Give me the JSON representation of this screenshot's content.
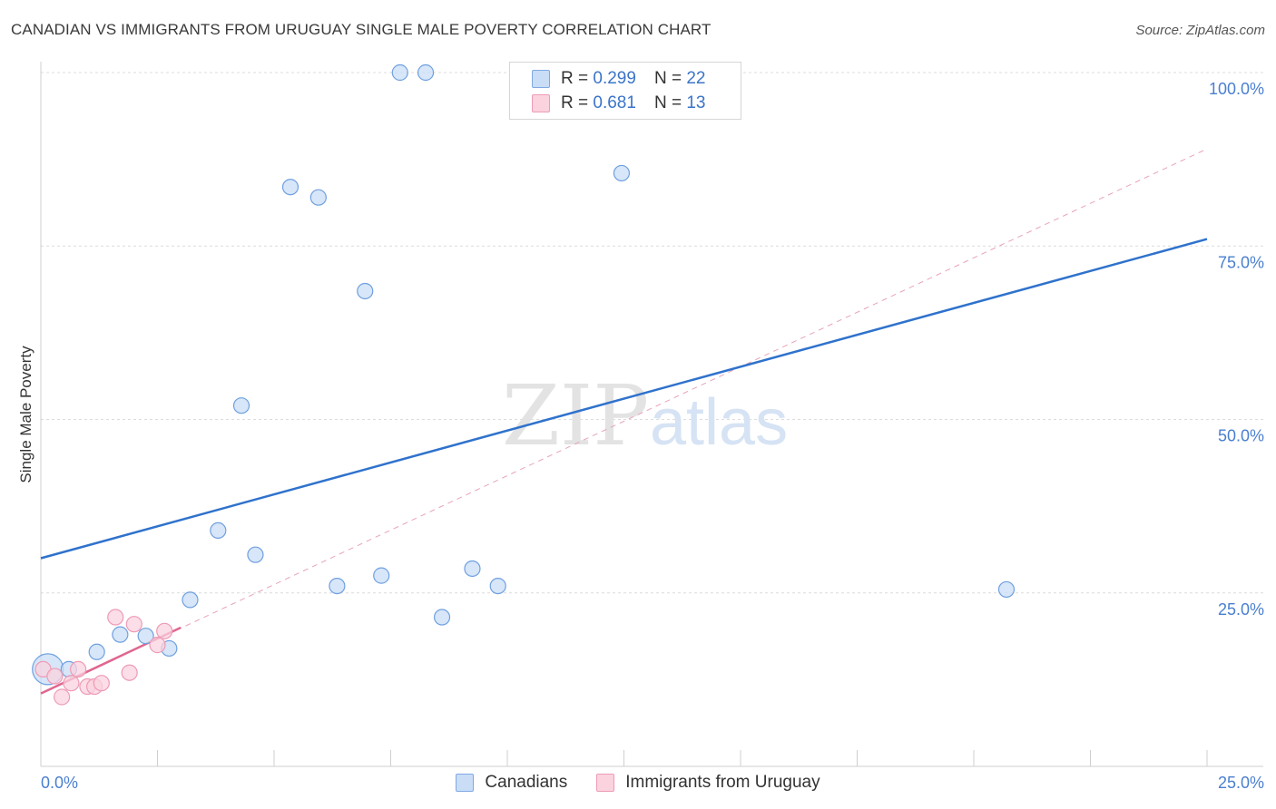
{
  "header": {
    "title": "CANADIAN VS IMMIGRANTS FROM URUGUAY SINGLE MALE POVERTY CORRELATION CHART",
    "source": "Source: ZipAtlas.com"
  },
  "watermark": {
    "zip": "ZIP",
    "atlas": "atlas"
  },
  "stats_legend": [
    {
      "r_label": "R =",
      "r_value": "0.299",
      "n_label": "N =",
      "n_value": "22",
      "color": "#a9c8f0"
    },
    {
      "r_label": "R =",
      "r_value": "0.681",
      "n_label": "N =",
      "n_value": "13",
      "color": "#f7b9cc"
    }
  ],
  "chart_data": {
    "type": "scatter",
    "title": "CANADIAN VS IMMIGRANTS FROM URUGUAY SINGLE MALE POVERTY CORRELATION CHART",
    "xlabel": "",
    "ylabel": "Single Male Poverty",
    "xlim": [
      0,
      25
    ],
    "ylim": [
      0,
      100
    ],
    "x_tick_labels": [
      "0.0%",
      "25.0%"
    ],
    "y_tick_labels": [
      "25.0%",
      "50.0%",
      "75.0%",
      "100.0%"
    ],
    "y_ticks": [
      25,
      50,
      75,
      100
    ],
    "grid": true,
    "legend_placement": "bottom",
    "series": [
      {
        "name": "Canadians",
        "color": "#6fa0e0",
        "fill": "#c9ddf6",
        "trend": {
          "x": [
            0,
            25
          ],
          "y": [
            30.0,
            76.0
          ],
          "color": "#2f72cc"
        },
        "points": [
          {
            "x": 0.15,
            "y": 14.0,
            "big": true
          },
          {
            "x": 0.6,
            "y": 14.0
          },
          {
            "x": 1.2,
            "y": 16.5
          },
          {
            "x": 1.7,
            "y": 19.0
          },
          {
            "x": 2.25,
            "y": 18.8
          },
          {
            "x": 2.75,
            "y": 17.0
          },
          {
            "x": 3.2,
            "y": 24.0
          },
          {
            "x": 3.8,
            "y": 34.0
          },
          {
            "x": 4.3,
            "y": 52.0
          },
          {
            "x": 4.6,
            "y": 30.5
          },
          {
            "x": 5.35,
            "y": 83.5
          },
          {
            "x": 5.95,
            "y": 82.0
          },
          {
            "x": 6.35,
            "y": 26.0
          },
          {
            "x": 6.95,
            "y": 68.5
          },
          {
            "x": 7.3,
            "y": 27.5
          },
          {
            "x": 7.7,
            "y": 100.0
          },
          {
            "x": 8.25,
            "y": 100.0
          },
          {
            "x": 8.6,
            "y": 21.5
          },
          {
            "x": 9.25,
            "y": 28.5
          },
          {
            "x": 9.8,
            "y": 26.0
          },
          {
            "x": 12.45,
            "y": 85.5
          },
          {
            "x": 20.7,
            "y": 25.5
          }
        ]
      },
      {
        "name": "Immigrants from Uruguay",
        "color": "#ee9bb5",
        "fill": "#fad3df",
        "trend": {
          "x": [
            0,
            3.0
          ],
          "y": [
            10.5,
            20.0
          ],
          "color": "#e0668f"
        },
        "trend_extended": {
          "x": [
            0,
            25
          ],
          "y": [
            10.5,
            89.0
          ],
          "color": "#e7a3b8"
        },
        "points": [
          {
            "x": 0.05,
            "y": 14.0
          },
          {
            "x": 0.3,
            "y": 13.0
          },
          {
            "x": 0.45,
            "y": 10.0
          },
          {
            "x": 0.65,
            "y": 12.0
          },
          {
            "x": 0.8,
            "y": 14.0
          },
          {
            "x": 1.0,
            "y": 11.5
          },
          {
            "x": 1.15,
            "y": 11.5
          },
          {
            "x": 1.3,
            "y": 12.0
          },
          {
            "x": 1.6,
            "y": 21.5
          },
          {
            "x": 1.9,
            "y": 13.5
          },
          {
            "x": 2.0,
            "y": 20.5
          },
          {
            "x": 2.5,
            "y": 17.5
          },
          {
            "x": 2.65,
            "y": 19.5
          }
        ]
      }
    ]
  }
}
